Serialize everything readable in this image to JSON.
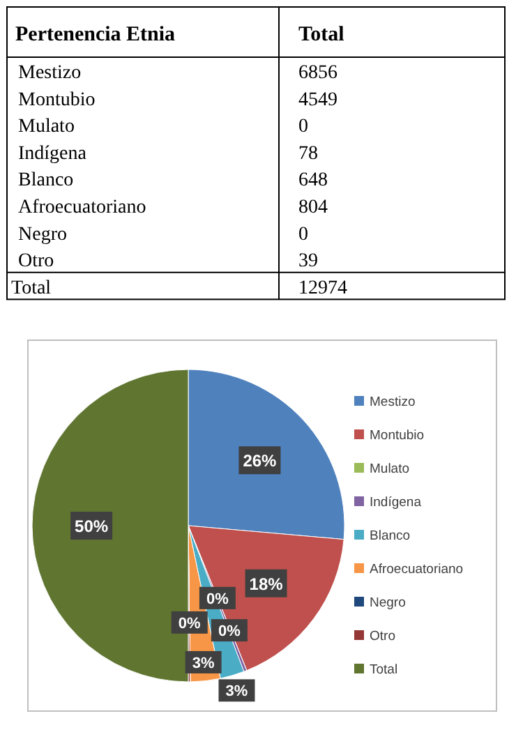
{
  "chart_data": [
    {
      "type": "other",
      "annotations": [
        "Pertenencia Etnia",
        "Total"
      ],
      "categories": [
        "Mestizo",
        "Montubio",
        "Mulato",
        "Indígena",
        "Blanco",
        "Afroecuatoriano",
        "Negro",
        "Otro",
        "Total"
      ],
      "values": [
        6856,
        4549,
        0,
        78,
        648,
        804,
        0,
        39,
        12974
      ],
      "data_labels": true
    },
    {
      "type": "pie",
      "categories": [
        "Mestizo",
        "Montubio",
        "Mulato",
        "Indígena",
        "Blanco",
        "Afroecuatoriano",
        "Negro",
        "Otro",
        "Total"
      ],
      "values": [
        26.4,
        17.5,
        0,
        0.3,
        2.5,
        3.1,
        0,
        0.2,
        50
      ],
      "value_labels": [
        "26%",
        "18%",
        "0%",
        "0%",
        "3%",
        "3%",
        "0%",
        null,
        "50%"
      ],
      "colors": [
        "#4f81bd",
        "#c0504d",
        "#9bbb59",
        "#8064a2",
        "#4bacc6",
        "#f79646",
        "#1f497d",
        "#953735",
        "#5f7530"
      ],
      "legend": "right"
    }
  ]
}
